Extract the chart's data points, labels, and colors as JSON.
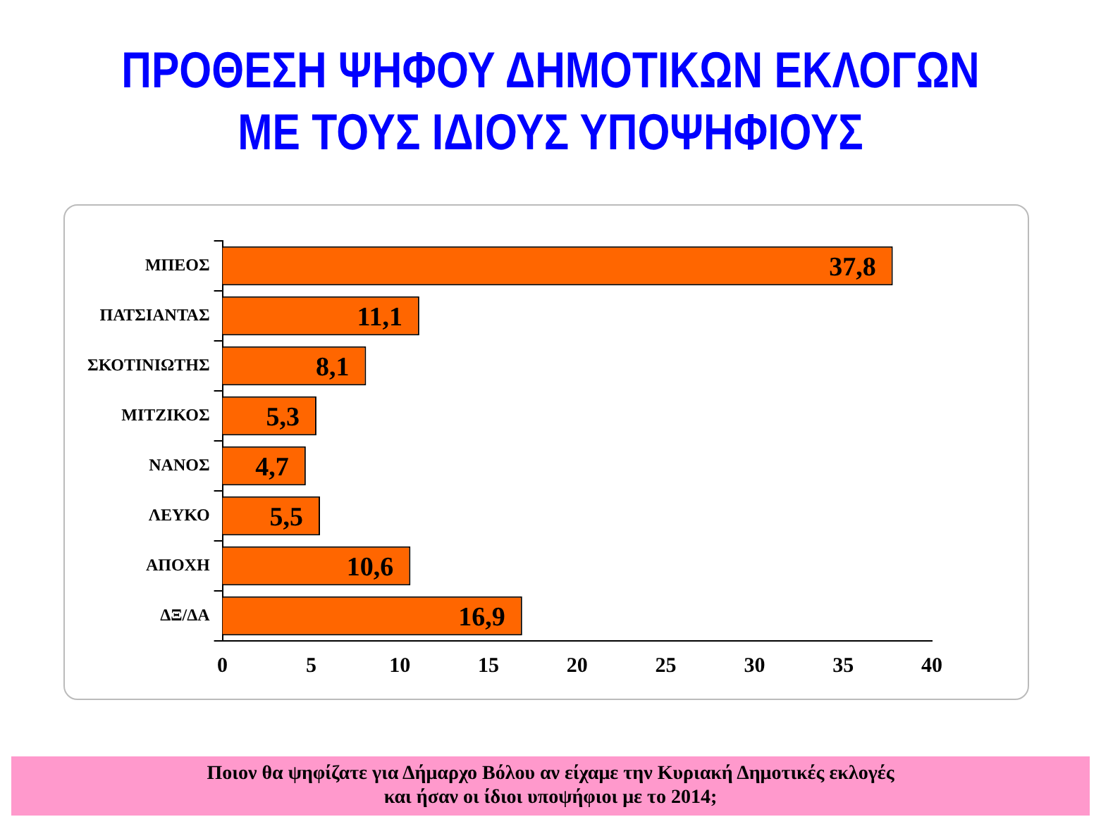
{
  "chart_data": {
    "type": "bar",
    "title": "ΠΡΟΘΕΣΗ ΨΗΦΟΥ ΔΗΜΟΤΙΚΩΝ ΕΚΛΟΓΩΝ\nΜΕ ΤΟΥΣ ΙΔΙΟΥΣ ΥΠΟΨΗΦΙΟΥΣ",
    "orientation": "horizontal",
    "categories": [
      "ΜΠΕΟΣ",
      "ΠΑΤΣΙΑΝΤΑΣ",
      "ΣΚΟΤΙΝΙΩΤΗΣ",
      "ΜΙΤΖΙΚΟΣ",
      "ΝΑΝΟΣ",
      "ΛΕΥΚΟ",
      "ΑΠΟΧΗ",
      "ΔΞ/ΔΑ"
    ],
    "values": [
      37.8,
      11.1,
      8.1,
      5.3,
      4.7,
      5.5,
      10.6,
      16.9
    ],
    "color": "#ff6600",
    "value_labels": [
      "37,8",
      "11,1",
      "8,1",
      "5,3",
      "4,7",
      "5,5",
      "10,6",
      "16,9"
    ],
    "xlim": [
      0,
      40
    ],
    "xticks": [
      0,
      5,
      10,
      15,
      20,
      25,
      30,
      35,
      40
    ],
    "grid": false,
    "legend": false,
    "annotations": [
      "Ποιον θα ψηφίζατε για Δήμαρχο Βόλου αν είχαμε την Κυριακή Δημοτικές εκλογές\nκαι ήσαν οι ίδιοι υποψήφιοι με το 2014;"
    ]
  }
}
